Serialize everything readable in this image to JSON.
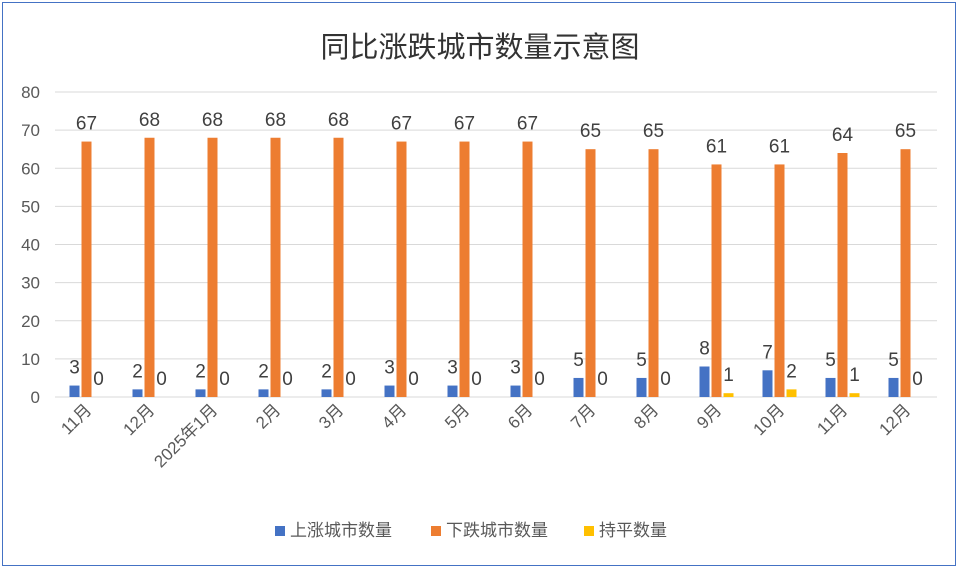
{
  "chart_data": {
    "type": "bar",
    "title": "同比涨跌城市数量示意图",
    "xlabel": "",
    "ylabel": "",
    "categories": [
      "11月",
      "12月",
      "2025年1月",
      "2月",
      "3月",
      "4月",
      "5月",
      "6月",
      "7月",
      "8月",
      "9月",
      "10月",
      "11月",
      "12月"
    ],
    "series": [
      {
        "name": "上涨城市数量",
        "color": "#4472c4",
        "values": [
          3,
          2,
          2,
          2,
          2,
          3,
          3,
          3,
          5,
          5,
          8,
          7,
          5,
          5
        ]
      },
      {
        "name": "下跌城市数量",
        "color": "#ed7d31",
        "values": [
          67,
          68,
          68,
          68,
          68,
          67,
          67,
          67,
          65,
          65,
          61,
          61,
          64,
          65
        ]
      },
      {
        "name": "持平数量",
        "color": "#ffc000",
        "values": [
          0,
          0,
          0,
          0,
          0,
          0,
          0,
          0,
          0,
          0,
          1,
          2,
          1,
          0
        ]
      }
    ],
    "ylim": [
      0,
      80
    ],
    "yticks": [
      0,
      10,
      20,
      30,
      40,
      50,
      60,
      70,
      80
    ],
    "grid": true,
    "legend": "bottom",
    "data_labels": true
  }
}
